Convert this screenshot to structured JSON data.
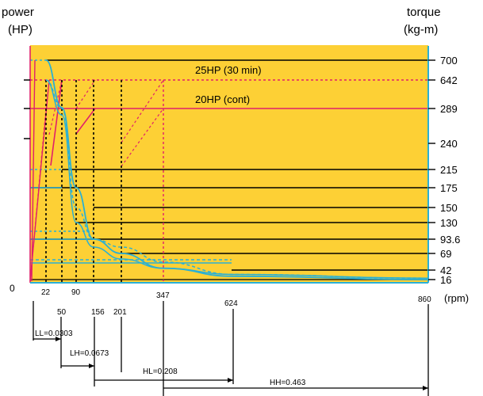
{
  "chart_data": {
    "type": "line",
    "left_axis_title": [
      "power",
      "(HP)"
    ],
    "right_axis_title": [
      "torque",
      "(kg-m)"
    ],
    "x_unit": "(rpm)",
    "x_ticks": [
      "22",
      "50",
      "90",
      "156",
      "201",
      "347",
      "624",
      "860"
    ],
    "x_max": 860,
    "origin_label": "0",
    "torque_ticks": [
      "700",
      "642",
      "289",
      "240",
      "215",
      "175",
      "150",
      "130",
      "93.6",
      "69",
      "42",
      "16"
    ],
    "annotations": [
      "25HP (30 min)",
      "20HP (cont)"
    ],
    "ranges": [
      {
        "label": "LL=0.0303",
        "from": 0,
        "to": 50
      },
      {
        "label": "LH=0.0673",
        "from": 50,
        "to": 156
      },
      {
        "label": "HL=0.208",
        "from": 156,
        "to": 624
      },
      {
        "label": "HH=0.463",
        "from": 347,
        "to": 860
      }
    ],
    "series": [
      {
        "x": [
          22,
          50,
          90,
          156,
          201,
          347,
          624,
          860
        ],
        "y": [
          700,
          300,
          175,
          93.6,
          69,
          45,
          25,
          16
        ]
      },
      {
        "x": [
          22,
          50,
          90,
          156,
          201,
          347,
          624,
          860
        ],
        "y": [
          642,
          290,
          150,
          93.6,
          80,
          55,
          30,
          20
        ]
      },
      {
        "x": [
          22,
          50,
          90,
          156,
          201,
          347,
          624,
          860
        ],
        "y": [
          640,
          280,
          130,
          80,
          60,
          45,
          30,
          20
        ]
      }
    ],
    "colors": {
      "background": "#fdd035",
      "axis": "#2ab0d4",
      "curve": "#2ab0d4",
      "power_line": "#e0206a",
      "grid": "#000000"
    }
  }
}
